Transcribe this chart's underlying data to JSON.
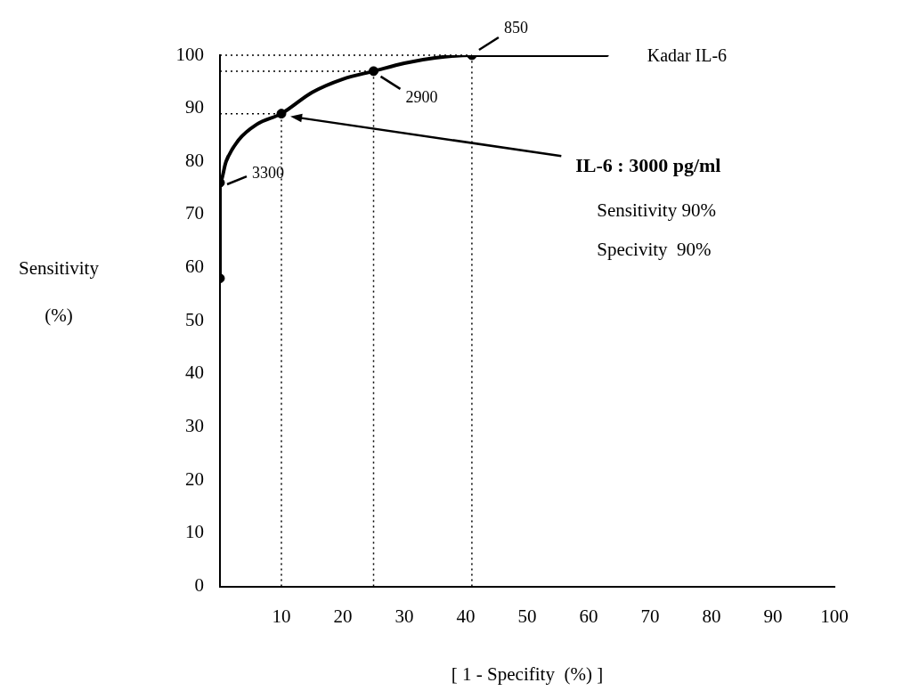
{
  "chart_data": {
    "type": "line",
    "xlabel": "[ 1 - Specifity  (%) ]",
    "ylabel": "Sensitivity\n(%)",
    "xlim": [
      0,
      100
    ],
    "xticks": [
      10,
      20,
      30,
      40,
      50,
      60,
      70,
      80,
      90,
      100
    ],
    "ylim": [
      0,
      100
    ],
    "yticks": [
      0,
      10,
      20,
      30,
      40,
      50,
      60,
      70,
      80,
      90,
      100
    ],
    "grid": false,
    "legend": false,
    "series": [
      {
        "name": "Kadar IL-6",
        "color": "#000000",
        "marker": "none",
        "x": [
          0,
          0,
          1,
          3,
          6,
          10,
          15,
          20,
          25,
          30,
          35,
          41,
          63
        ],
        "values": [
          58,
          76,
          80,
          84,
          87,
          89,
          93,
          95.5,
          97,
          98.5,
          99.5,
          100,
          100
        ]
      },
      {
        "type": "scatter",
        "color": "#000000",
        "marker": "circle",
        "x": [
          0,
          0,
          10,
          25,
          41
        ],
        "values": [
          58,
          76,
          89,
          97,
          100
        ]
      }
    ],
    "ref_lines": [
      {
        "axis": "x",
        "value": 10,
        "line_style": "dotted",
        "color": "#000000"
      },
      {
        "axis": "x",
        "value": 25,
        "line_style": "dotted",
        "color": "#000000"
      },
      {
        "axis": "x",
        "value": 41,
        "line_style": "dotted",
        "color": "#000000"
      },
      {
        "axis": "y",
        "value": 89,
        "line_style": "dotted",
        "color": "#000000"
      },
      {
        "axis": "y",
        "value": 97,
        "line_style": "dotted",
        "color": "#000000"
      },
      {
        "axis": "y",
        "value": 100,
        "line_style": "dotted",
        "color": "#000000"
      }
    ],
    "annotations": [
      {
        "text": "3300",
        "x": 0,
        "y": 76
      },
      {
        "text": "2900",
        "x": 25,
        "y": 97
      },
      {
        "text": "850",
        "x": 41,
        "y": 100
      },
      "IL-6 : 3000 pg/ml",
      "Sensitivity 90%",
      "Specivity  90%"
    ]
  }
}
